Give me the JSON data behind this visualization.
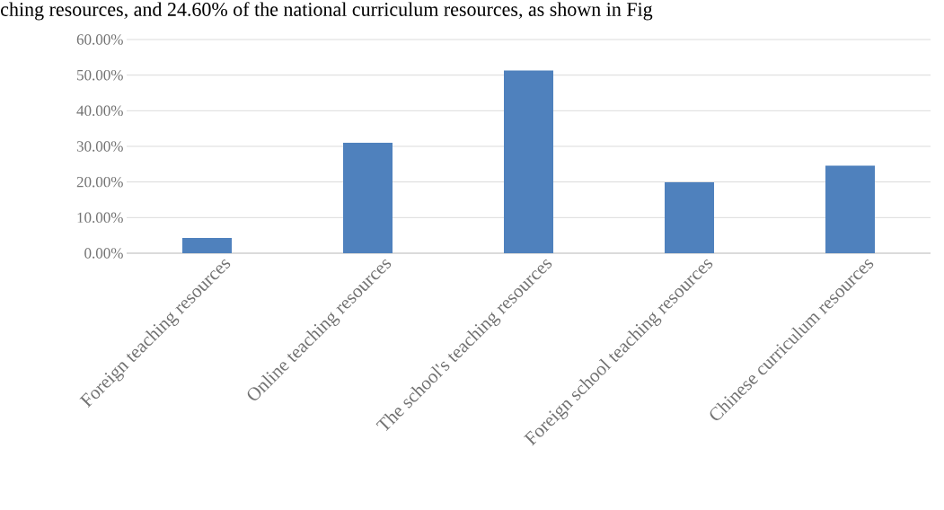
{
  "chart_data": {
    "type": "bar",
    "categories": [
      "Foreign teaching resources",
      "Online teaching resources",
      "The school's teaching resources",
      "Foreign school teaching resources",
      "Chinese curriculum resources"
    ],
    "values": [
      4.3,
      31.0,
      51.3,
      19.9,
      24.6
    ],
    "color": "#4f81bd",
    "ylim": [
      0,
      60
    ],
    "yticks": [
      {
        "value": 0,
        "label": "0.00%"
      },
      {
        "value": 10,
        "label": "10.00%"
      },
      {
        "value": 20,
        "label": "20.00%"
      },
      {
        "value": 30,
        "label": "30.00%"
      },
      {
        "value": 40,
        "label": "40.00%"
      },
      {
        "value": 50,
        "label": "50.00%"
      },
      {
        "value": 60,
        "label": "60.00%"
      }
    ],
    "grid": "y",
    "annotations": [
      "ching resources, and 24.60% of the national curriculum resources, as shown in Fig"
    ]
  }
}
